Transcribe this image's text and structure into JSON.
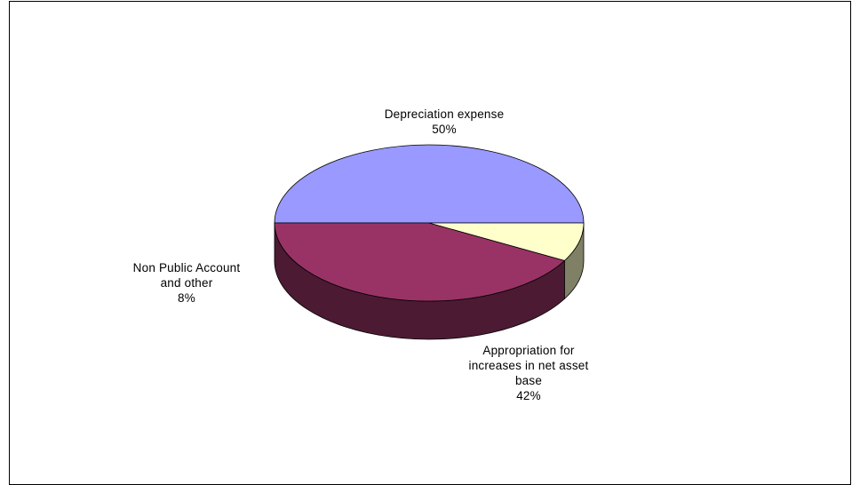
{
  "chart_data": {
    "type": "pie",
    "style": "3d",
    "slices": [
      {
        "label_lines": [
          "Depreciation expense"
        ],
        "percent_label": "50%",
        "value": 50,
        "color": "#9999FF",
        "side_color": "#5C5C99"
      },
      {
        "label_lines": [
          "Appropriation for",
          "increases in net asset",
          "base"
        ],
        "percent_label": "42%",
        "value": 42,
        "color": "#993366",
        "side_color": "#4C1A33"
      },
      {
        "label_lines": [
          "Non Public Account",
          "and other"
        ],
        "percent_label": "8%",
        "value": 8,
        "color": "#FFFFCC",
        "side_color": "#808066"
      }
    ]
  }
}
